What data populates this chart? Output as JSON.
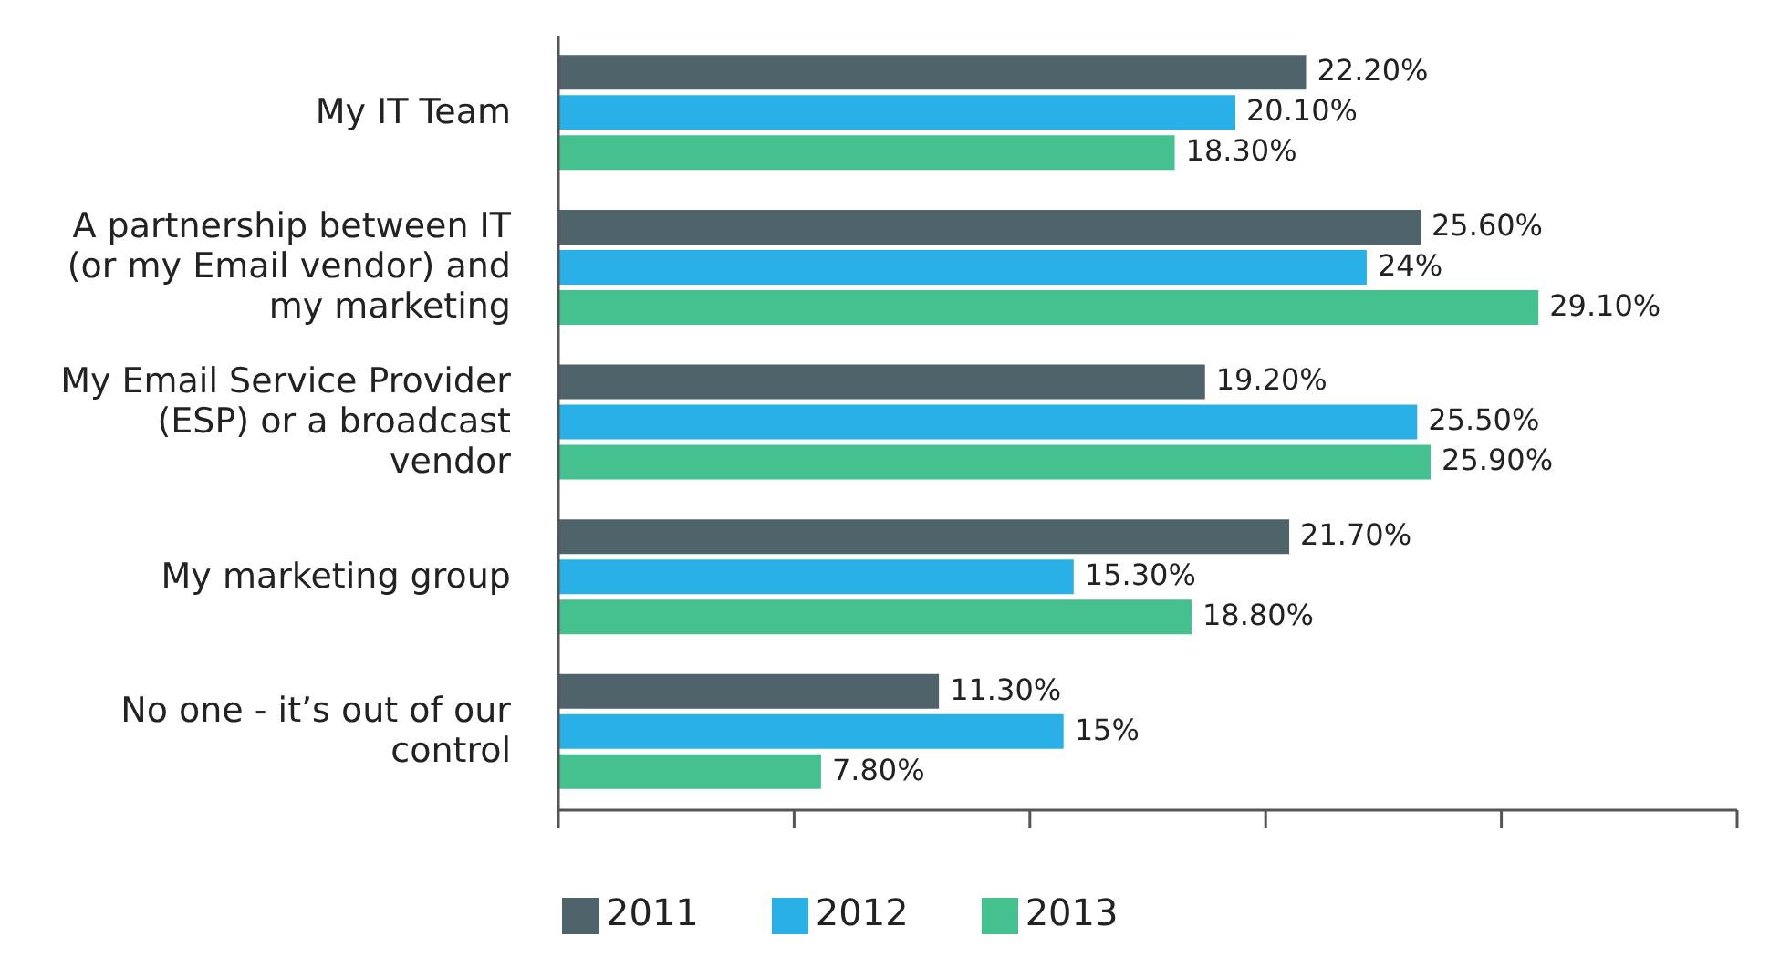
{
  "chart_data": {
    "type": "bar",
    "orientation": "horizontal",
    "categories": [
      "My IT Team",
      "A partnership between IT (or my Email vendor) and my marketing",
      "My Email Service Provider (ESP) or a broadcast vendor",
      "My marketing group",
      "No one - it’s out of our control"
    ],
    "series": [
      {
        "name": "2011",
        "color": "#4f636b",
        "values": [
          22.2,
          25.6,
          19.2,
          21.7,
          11.3
        ],
        "value_labels": [
          "22.20%",
          "25.60%",
          "19.20%",
          "21.70%",
          "11.30%"
        ]
      },
      {
        "name": "2012",
        "color": "#29b0e6",
        "values": [
          20.1,
          24,
          25.5,
          15.3,
          15
        ],
        "value_labels": [
          "20.10%",
          "24%",
          "25.50%",
          "15.30%",
          "15%"
        ]
      },
      {
        "name": "2013",
        "color": "#45c08f",
        "values": [
          18.3,
          29.1,
          25.9,
          18.8,
          7.8
        ],
        "value_labels": [
          "18.30%",
          "29.10%",
          "25.90%",
          "18.80%",
          "7.80%"
        ]
      }
    ],
    "xlim": [
      0,
      35
    ],
    "xticks": [
      {
        "value": 0,
        "label": null
      },
      {
        "value": 7,
        "label": null
      },
      {
        "value": 14,
        "label": null
      },
      {
        "value": 21,
        "label": null
      },
      {
        "value": 28,
        "label": null
      },
      {
        "value": 35,
        "label": null
      }
    ],
    "tick_labels": "y",
    "grid": false,
    "legend": "bottom left"
  }
}
